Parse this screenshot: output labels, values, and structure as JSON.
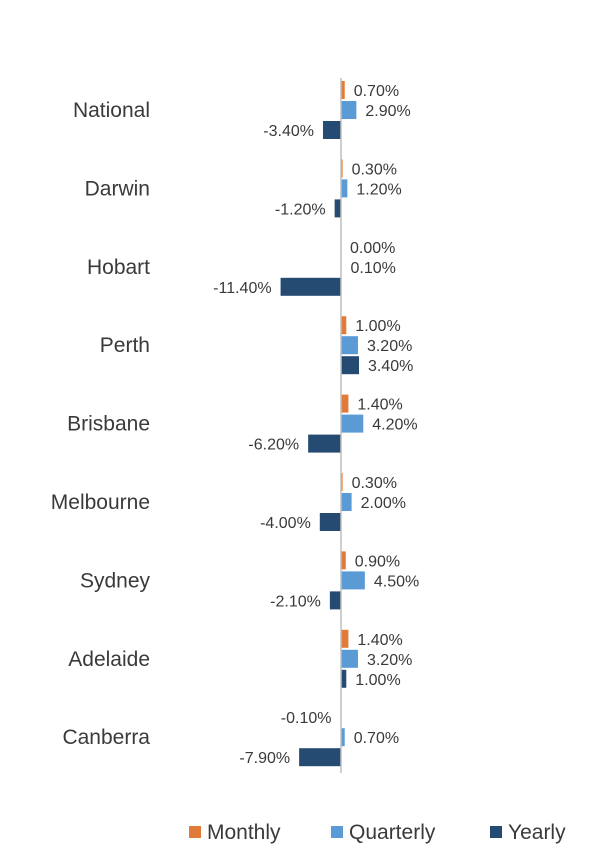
{
  "chart_data": {
    "type": "bar",
    "orientation": "horizontal",
    "categories": [
      "National",
      "Darwin",
      "Hobart",
      "Perth",
      "Brisbane",
      "Melbourne",
      "Sydney",
      "Adelaide",
      "Canberra"
    ],
    "series": [
      {
        "name": "Monthly",
        "color": "#e07b39",
        "values": [
          0.7,
          0.3,
          0.0,
          1.0,
          1.4,
          0.3,
          0.9,
          1.4,
          -0.1
        ],
        "labels": [
          "0.70%",
          "0.30%",
          "0.00%",
          "1.00%",
          "1.40%",
          "0.30%",
          "0.90%",
          "1.40%",
          "-0.10%"
        ]
      },
      {
        "name": "Quarterly",
        "color": "#5b9bd5",
        "values": [
          2.9,
          1.2,
          0.1,
          3.2,
          4.2,
          2.0,
          4.5,
          3.2,
          0.7
        ],
        "labels": [
          "2.90%",
          "1.20%",
          "0.10%",
          "3.20%",
          "4.20%",
          "2.00%",
          "4.50%",
          "3.20%",
          "0.70%"
        ]
      },
      {
        "name": "Yearly",
        "color": "#264b73",
        "values": [
          -3.4,
          -1.2,
          -11.4,
          3.4,
          -6.2,
          -4.0,
          -2.1,
          1.0,
          -7.9
        ],
        "labels": [
          "-3.40%",
          "-1.20%",
          "-11.40%",
          "3.40%",
          "-6.20%",
          "-4.00%",
          "-2.10%",
          "1.00%",
          "-7.90%"
        ]
      }
    ],
    "xlim": [
      -12,
      5
    ],
    "grid": false,
    "legend_position": "bottom"
  }
}
